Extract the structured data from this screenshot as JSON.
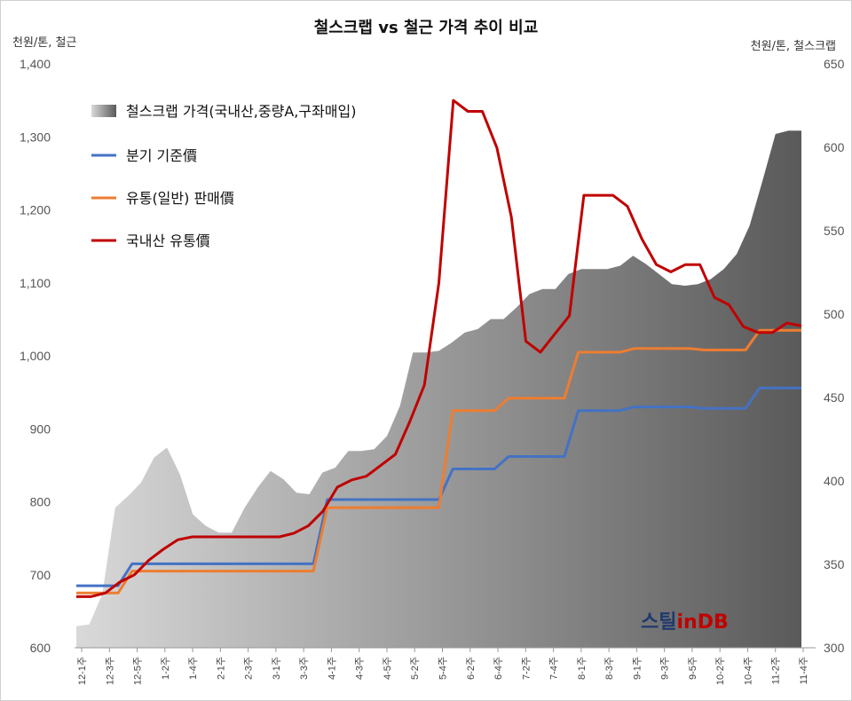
{
  "colors": {
    "scrap_area_dark": "#5a5a5a",
    "scrap_area_light": "#d9d9d9",
    "quarterly": "#4472c4",
    "general": "#ed7d31",
    "domestic": "#c00000",
    "brand_navy": "#1f3a6e",
    "brand_red": "#c00000"
  },
  "brand": {
    "part1": "스틸",
    "part2": "in",
    "part3": "DB"
  },
  "chart_data": {
    "type": "line",
    "title": "철스크랩 vs 철근 가격 추이 비교",
    "ylabel_left": "천원/톤, 철근",
    "ylabel_right": "천원/톤, 철스크랩",
    "ylim_left": [
      600,
      1400
    ],
    "ylim_right": [
      300,
      650
    ],
    "yticks_left": [
      "600",
      "700",
      "800",
      "900",
      "1,000",
      "1,100",
      "1,200",
      "1,300",
      "1,400"
    ],
    "yticks_right": [
      "300",
      "350",
      "400",
      "450",
      "500",
      "550",
      "600",
      "650"
    ],
    "x_labels": [
      "12-1주",
      "12-3주",
      "12-5주",
      "1-2주",
      "1-4주",
      "2-1주",
      "2-3주",
      "3-1주",
      "3-3주",
      "4-1주",
      "4-3주",
      "4-5주",
      "5-2주",
      "5-4주",
      "6-2주",
      "6-4주",
      "7-2주",
      "7-4주",
      "8-1주",
      "8-3주",
      "9-1주",
      "9-3주",
      "9-5주",
      "10-2주",
      "10-4주",
      "11-2주",
      "11-4주"
    ],
    "legend": [
      "철스크랩 가격(국내산,중량A,구좌매입)",
      "분기 기준價",
      "유통(일반) 판매價",
      "국내산 유통價"
    ],
    "series": [
      {
        "name": "철스크랩 가격(국내산,중량A,구좌매입)",
        "kind": "area",
        "axis": "right",
        "values": [
          313,
          314,
          332,
          384,
          391,
          399,
          414,
          420,
          404,
          380,
          373,
          369,
          369,
          384,
          396,
          406,
          401,
          393,
          392,
          405,
          408,
          418,
          418,
          419,
          427,
          445,
          477,
          477,
          478,
          483,
          489,
          491,
          497,
          497,
          504,
          512,
          515,
          515,
          524,
          527,
          527,
          527,
          529,
          535,
          530,
          524,
          518,
          517,
          518,
          521,
          527,
          536,
          553,
          580,
          608,
          610,
          610
        ]
      },
      {
        "name": "분기 기준價",
        "kind": "line",
        "axis": "left",
        "values": [
          685,
          685,
          685,
          685,
          715,
          715,
          715,
          715,
          715,
          715,
          715,
          715,
          715,
          715,
          715,
          715,
          715,
          715,
          803,
          803,
          803,
          803,
          803,
          803,
          803,
          803,
          803,
          845,
          845,
          845,
          845,
          862,
          862,
          862,
          862,
          862,
          925,
          925,
          925,
          925,
          930,
          930,
          930,
          930,
          930,
          928,
          928,
          928,
          928,
          956,
          956,
          956,
          956
        ]
      },
      {
        "name": "유통(일반) 판매價",
        "kind": "line",
        "axis": "left",
        "values": [
          675,
          675,
          675,
          675,
          705,
          705,
          705,
          705,
          705,
          705,
          705,
          705,
          705,
          705,
          705,
          705,
          705,
          705,
          792,
          792,
          792,
          792,
          792,
          792,
          792,
          792,
          792,
          925,
          925,
          925,
          925,
          942,
          942,
          942,
          942,
          942,
          1005,
          1005,
          1005,
          1005,
          1010,
          1010,
          1010,
          1010,
          1010,
          1008,
          1008,
          1008,
          1008,
          1035,
          1035,
          1035,
          1035
        ]
      },
      {
        "name": "국내산 유통價",
        "kind": "line",
        "axis": "left",
        "values": [
          670,
          670,
          675,
          690,
          700,
          720,
          735,
          748,
          752,
          752,
          752,
          752,
          752,
          752,
          752,
          757,
          767,
          787,
          820,
          830,
          835,
          850,
          865,
          910,
          960,
          1100,
          1350,
          1335,
          1335,
          1285,
          1190,
          1020,
          1005,
          1030,
          1055,
          1220,
          1220,
          1220,
          1205,
          1160,
          1125,
          1115,
          1125,
          1125,
          1080,
          1070,
          1040,
          1032,
          1032,
          1045,
          1041
        ]
      }
    ],
    "grid": false,
    "legend_position": "top-left inside plot"
  }
}
